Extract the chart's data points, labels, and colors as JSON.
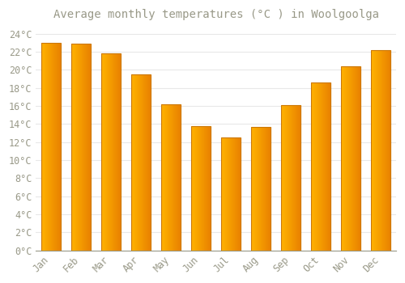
{
  "title": "Average monthly temperatures (°C ) in Woolgoolga",
  "months": [
    "Jan",
    "Feb",
    "Mar",
    "Apr",
    "May",
    "Jun",
    "Jul",
    "Aug",
    "Sep",
    "Oct",
    "Nov",
    "Dec"
  ],
  "values": [
    23.0,
    22.9,
    21.8,
    19.5,
    16.2,
    13.8,
    12.5,
    13.7,
    16.1,
    18.6,
    20.4,
    22.2
  ],
  "bar_color_left": "#FFB300",
  "bar_color_right": "#E88000",
  "bar_edge_color": "#CC7700",
  "background_color": "#FFFFFF",
  "grid_color": "#E8E8E8",
  "text_color": "#999988",
  "ylim": [
    0,
    25
  ],
  "yticks": [
    0,
    2,
    4,
    6,
    8,
    10,
    12,
    14,
    16,
    18,
    20,
    22,
    24
  ],
  "ytick_labels": [
    "0°C",
    "2°C",
    "4°C",
    "6°C",
    "8°C",
    "10°C",
    "12°C",
    "14°C",
    "16°C",
    "18°C",
    "20°C",
    "22°C",
    "24°C"
  ],
  "title_fontsize": 10,
  "tick_fontsize": 8.5,
  "font_family": "monospace",
  "bar_width": 0.65
}
